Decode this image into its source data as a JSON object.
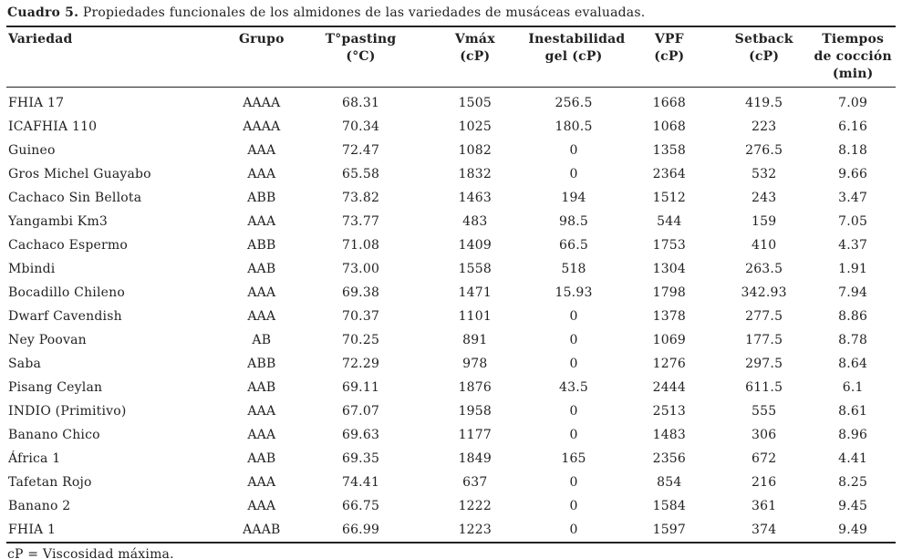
{
  "caption": {
    "label": "Cuadro 5.",
    "text": " Propiedades funcionales de los almidones de las variedades de musáceas evaluadas."
  },
  "table": {
    "columns": [
      {
        "id": "variedad",
        "align": "left",
        "lines": [
          "Variedad"
        ]
      },
      {
        "id": "grupo",
        "align": "center",
        "lines": [
          "Grupo"
        ]
      },
      {
        "id": "t-pasting",
        "align": "center",
        "lines": [
          "T°pasting",
          "(°C)"
        ]
      },
      {
        "id": "vmax",
        "align": "center",
        "lines": [
          "Vmáx",
          "(cP)"
        ]
      },
      {
        "id": "inestabilidad-gel",
        "align": "center",
        "lines": [
          "Inestabilidad",
          "gel (cP)"
        ]
      },
      {
        "id": "vpf",
        "align": "center",
        "lines": [
          "VPF",
          "(cP)"
        ]
      },
      {
        "id": "setback",
        "align": "center",
        "lines": [
          "Setback",
          "(cP)"
        ]
      },
      {
        "id": "tiempos-coccion",
        "align": "center",
        "lines": [
          "Tiempos",
          "de cocción",
          "(min)"
        ]
      }
    ],
    "rows": [
      [
        "FHIA 17",
        "AAAA",
        "68.31",
        "1505",
        "256.5",
        "1668",
        "419.5",
        "7.09"
      ],
      [
        "ICAFHIA 110",
        "AAAA",
        "70.34",
        "1025",
        "180.5",
        "1068",
        "223",
        "6.16"
      ],
      [
        "Guineo",
        "AAA",
        "72.47",
        "1082",
        "0",
        "1358",
        "276.5",
        "8.18"
      ],
      [
        "Gros Michel Guayabo",
        "AAA",
        "65.58",
        "1832",
        "0",
        "2364",
        "532",
        "9.66"
      ],
      [
        "Cachaco Sin Bellota",
        "ABB",
        "73.82",
        "1463",
        "194",
        "1512",
        "243",
        "3.47"
      ],
      [
        "Yangambi Km3",
        "AAA",
        "73.77",
        "483",
        "98.5",
        "544",
        "159",
        "7.05"
      ],
      [
        "Cachaco Espermo",
        "ABB",
        "71.08",
        "1409",
        "66.5",
        "1753",
        "410",
        "4.37"
      ],
      [
        "Mbindi",
        "AAB",
        "73.00",
        "1558",
        "518",
        "1304",
        "263.5",
        "1.91"
      ],
      [
        "Bocadillo Chileno",
        "AAA",
        "69.38",
        "1471",
        "15.93",
        "1798",
        "342.93",
        "7.94"
      ],
      [
        "Dwarf Cavendish",
        "AAA",
        "70.37",
        "1101",
        "0",
        "1378",
        "277.5",
        "8.86"
      ],
      [
        "Ney Poovan",
        "AB",
        "70.25",
        "891",
        "0",
        "1069",
        "177.5",
        "8.78"
      ],
      [
        "Saba",
        "ABB",
        "72.29",
        "978",
        "0",
        "1276",
        "297.5",
        "8.64"
      ],
      [
        "Pisang Ceylan",
        "AAB",
        "69.11",
        "1876",
        "43.5",
        "2444",
        "611.5",
        "6.1"
      ],
      [
        "INDIO (Primitivo)",
        "AAA",
        "67.07",
        "1958",
        "0",
        "2513",
        "555",
        "8.61"
      ],
      [
        "Banano Chico",
        "AAA",
        "69.63",
        "1177",
        "0",
        "1483",
        "306",
        "8.96"
      ],
      [
        "África 1",
        "AAB",
        "69.35",
        "1849",
        "165",
        "2356",
        "672",
        "4.41"
      ],
      [
        "Tafetan Rojo",
        "AAA",
        "74.41",
        "637",
        "0",
        "854",
        "216",
        "8.25"
      ],
      [
        "Banano 2",
        "AAA",
        "66.75",
        "1222",
        "0",
        "1584",
        "361",
        "9.45"
      ],
      [
        "FHIA 1",
        "AAAB",
        "66.99",
        "1223",
        "0",
        "1597",
        "374",
        "9.49"
      ]
    ]
  },
  "footnote": "cP = Viscosidad máxima."
}
